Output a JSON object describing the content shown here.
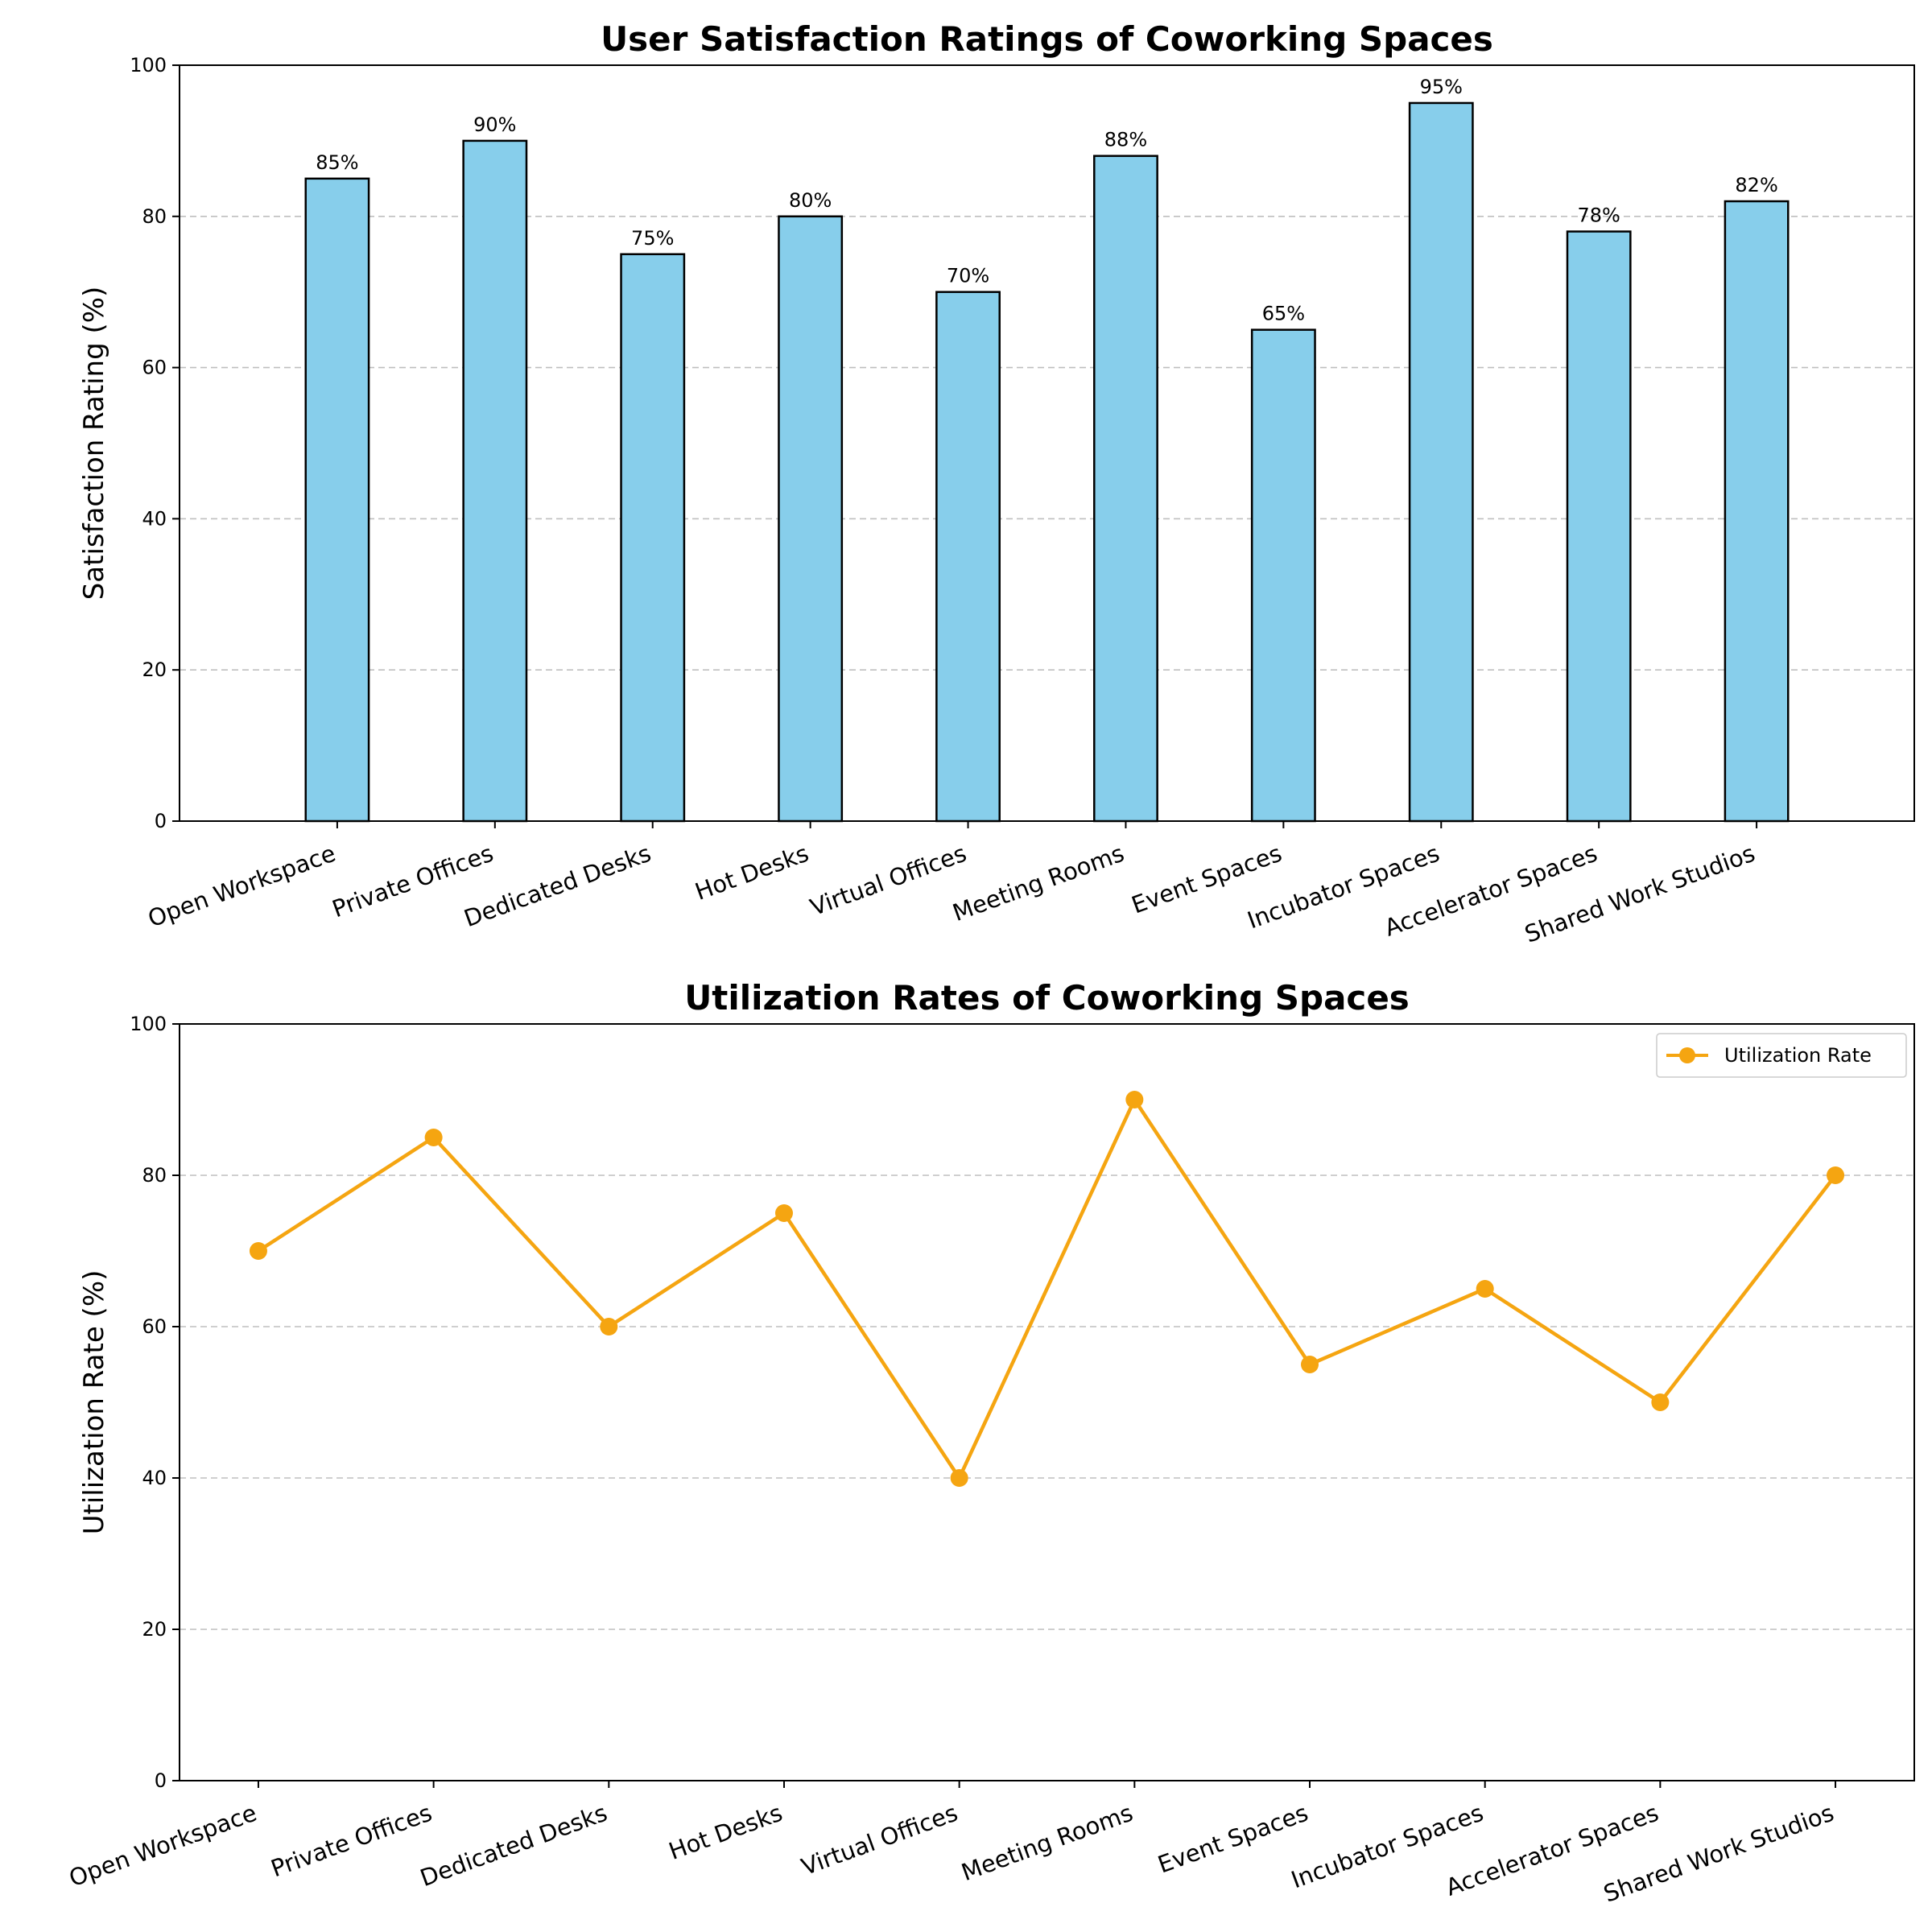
{
  "chart_data": [
    {
      "type": "bar",
      "title": "User Satisfaction Ratings of Coworking Spaces",
      "xlabel": "",
      "ylabel": "Satisfaction Rating (%)",
      "ylim": [
        0,
        100
      ],
      "yticks": [
        0,
        20,
        40,
        60,
        80,
        100
      ],
      "grid": "y",
      "categories": [
        "Open Workspace",
        "Private Offices",
        "Dedicated Desks",
        "Hot Desks",
        "Virtual Offices",
        "Meeting Rooms",
        "Event Spaces",
        "Incubator Spaces",
        "Accelerator Spaces",
        "Shared Work Studios"
      ],
      "values": [
        85,
        90,
        75,
        80,
        70,
        88,
        65,
        95,
        78,
        82
      ],
      "data_labels": [
        "85%",
        "90%",
        "75%",
        "80%",
        "70%",
        "88%",
        "65%",
        "95%",
        "78%",
        "82%"
      ],
      "bar_color": "#87ceeb",
      "edge_color": "#000000"
    },
    {
      "type": "line",
      "title": "Utilization Rates of Coworking Spaces",
      "xlabel": "",
      "ylabel": "Utilization Rate (%)",
      "ylim": [
        0,
        100
      ],
      "yticks": [
        0,
        20,
        40,
        60,
        80,
        100
      ],
      "grid": "y",
      "legend_position": "top-right",
      "categories": [
        "Open Workspace",
        "Private Offices",
        "Dedicated Desks",
        "Hot Desks",
        "Virtual Offices",
        "Meeting Rooms",
        "Event Spaces",
        "Incubator Spaces",
        "Accelerator Spaces",
        "Shared Work Studios"
      ],
      "series": [
        {
          "name": "Utilization Rate",
          "values": [
            70,
            85,
            60,
            75,
            40,
            90,
            55,
            65,
            50,
            80
          ],
          "color": "#f5a511",
          "marker": "circle"
        }
      ]
    }
  ]
}
